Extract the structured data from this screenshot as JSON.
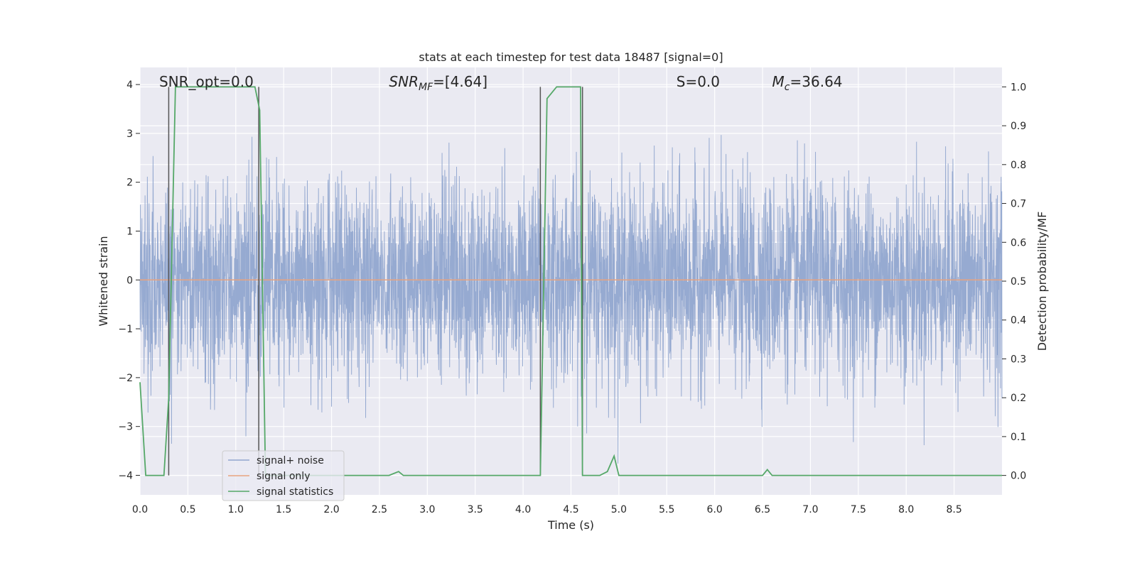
{
  "chart_data": {
    "type": "line",
    "title": "stats at each timestep for test data 18487 [signal=0]",
    "xlabel": "Time (s)",
    "ylabel": "Whitened strain",
    "y2label": "Detection probability/MF",
    "xlim": [
      0.0,
      9.0
    ],
    "ylim": [
      -4.4,
      4.35
    ],
    "y2lim": [
      -0.05,
      1.05
    ],
    "xticks": [
      "0.0",
      "0.5",
      "1.0",
      "1.5",
      "2.0",
      "2.5",
      "3.0",
      "3.5",
      "4.0",
      "4.5",
      "5.0",
      "5.5",
      "6.0",
      "6.5",
      "7.0",
      "7.5",
      "8.0",
      "8.5"
    ],
    "yticks": [
      "−4",
      "−3",
      "−2",
      "−1",
      "0",
      "1",
      "2",
      "3",
      "4"
    ],
    "y2ticks": [
      "0.0",
      "0.1",
      "0.2",
      "0.3",
      "0.4",
      "0.5",
      "0.6",
      "0.7",
      "0.8",
      "0.9",
      "1.0"
    ],
    "grid": true,
    "legend_position": "lower-left",
    "annotations": [
      {
        "text": "SNR_opt=0.0",
        "x": 0.2,
        "y": 4.0
      },
      {
        "text": "SNR_MF=[4.64]",
        "x": 2.6,
        "y": 4.0
      },
      {
        "text": "S=0.0",
        "x": 5.6,
        "y": 4.0
      },
      {
        "text": "M_c=36.64",
        "x": 6.6,
        "y": 4.0
      }
    ],
    "vlines": [
      0.3,
      1.24,
      4.18,
      4.62
    ],
    "series": [
      {
        "name": "signal+ noise",
        "color": "#91a6cf",
        "axis": "left",
        "kind": "noise",
        "samples": 4096,
        "sigma": 1.0
      },
      {
        "name": "signal only",
        "color": "#e8a37f",
        "axis": "left",
        "x": [
          0.0,
          9.0
        ],
        "y": [
          0.0,
          0.0
        ]
      },
      {
        "name": "signal statistics",
        "color": "#55a868",
        "axis": "right",
        "x": [
          0.0,
          0.06,
          0.12,
          0.25,
          0.3,
          0.37,
          0.45,
          1.0,
          1.2,
          1.25,
          1.31,
          1.37,
          1.45,
          2.0,
          2.6,
          2.7,
          2.75,
          3.0,
          3.5,
          4.0,
          4.18,
          4.25,
          4.35,
          4.5,
          4.6,
          4.62,
          4.68,
          4.8,
          4.88,
          4.95,
          5.0,
          5.5,
          6.0,
          6.5,
          6.55,
          6.6,
          6.7,
          7.0,
          7.5,
          8.0,
          8.5,
          9.0
        ],
        "y": [
          0.24,
          0.0,
          0.0,
          0.0,
          0.2,
          1.0,
          1.0,
          1.0,
          1.0,
          0.94,
          0.0,
          0.0,
          0.0,
          0.0,
          0.0,
          0.01,
          0.0,
          0.0,
          0.0,
          0.0,
          0.0,
          0.97,
          1.0,
          1.0,
          1.0,
          0.0,
          0.0,
          0.0,
          0.01,
          0.05,
          0.0,
          0.0,
          0.0,
          0.0,
          0.015,
          0.0,
          0.0,
          0.0,
          0.0,
          0.0,
          0.0,
          0.0
        ]
      }
    ]
  }
}
